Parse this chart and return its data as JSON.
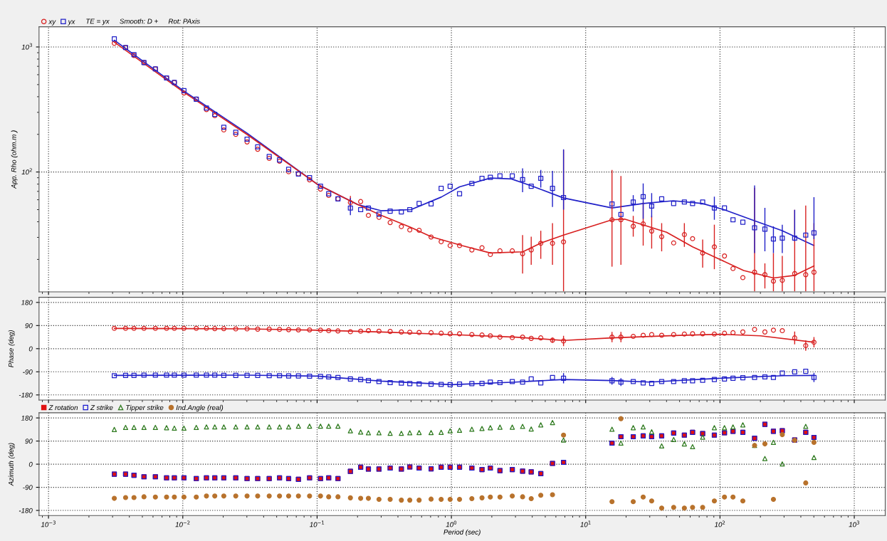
{
  "chart_data": [
    {
      "type": "scatter",
      "ylabel": "App. Rho (ohm.m )",
      "log": "xy",
      "grid": true,
      "legend": "top left",
      "tick_labels": "y",
      "annotations": [
        "TE = yx",
        "Smooth: D +",
        "Rot: PAxis"
      ],
      "xlim": [
        0.00085,
        1700
      ],
      "xticks": [
        {
          "value": 0.001,
          "label": null
        },
        {
          "value": 0.01,
          "label": null
        },
        {
          "value": 0.1,
          "label": null
        },
        {
          "value": 1,
          "label": null
        },
        {
          "value": 10,
          "label": null
        },
        {
          "value": 100,
          "label": null
        },
        {
          "value": 1000,
          "label": null
        }
      ],
      "ylim": [
        11,
        1450
      ],
      "yticks": [
        {
          "value": 100,
          "label": "10$^{2}$"
        },
        {
          "value": 1000,
          "label": "10$^{3}$"
        }
      ],
      "x": [
        0.00309,
        0.00375,
        0.00433,
        0.00514,
        0.00625,
        0.00757,
        0.00865,
        0.0102,
        0.0126,
        0.015,
        0.0173,
        0.0202,
        0.0248,
        0.0301,
        0.0361,
        0.044,
        0.0525,
        0.0614,
        0.0726,
        0.0879,
        0.106,
        0.122,
        0.143,
        0.177,
        0.211,
        0.241,
        0.289,
        0.35,
        0.424,
        0.49,
        0.575,
        0.706,
        0.839,
        0.979,
        1.15,
        1.42,
        1.69,
        1.95,
        2.3,
        2.84,
        3.39,
        3.93,
        4.63,
        5.66,
        6.84,
        15.7,
        18.3,
        22.6,
        26.8,
        31.0,
        36.8,
        45.2,
        54.3,
        62.5,
        74.3,
        90.8,
        108,
        125,
        148,
        181,
        216,
        250,
        291,
        360,
        435,
        501
      ],
      "series": [
        {
          "type": "line",
          "color": "#2020c8",
          "x": [
            0.0031,
            0.01,
            0.03,
            0.1,
            0.2,
            0.3,
            0.5,
            0.84,
            1.15,
            1.95,
            2.8,
            4.0,
            6.84,
            15.7,
            26.8,
            45,
            74,
            108,
            180,
            290,
            501
          ],
          "values": [
            1130,
            450,
            205,
            80,
            55,
            49,
            50,
            63,
            76,
            89.5,
            88,
            77,
            62,
            51.6,
            56,
            58.9,
            56,
            49.8,
            40.8,
            34,
            25.8
          ]
        },
        {
          "type": "line",
          "color": "#d82020",
          "x": [
            0.0031,
            0.01,
            0.03,
            0.1,
            0.2,
            0.3,
            0.5,
            0.706,
            1.2,
            1.95,
            3.4,
            4.63,
            6.84,
            15.7,
            19.5,
            40,
            62.5,
            98,
            150,
            250,
            360,
            501
          ],
          "values": [
            1090,
            440,
            200,
            80,
            55,
            45,
            36,
            30.4,
            25.8,
            22.5,
            23,
            27,
            31.3,
            41.5,
            42,
            33,
            25.2,
            20.2,
            16.3,
            14.2,
            14.9,
            17.7
          ]
        },
        {
          "name": "xy",
          "color": "#d82020",
          "marker": "circle",
          "values": [
            1070,
            990,
            855,
            750,
            668,
            565,
            520,
            428,
            382,
            316,
            282,
            217,
            200,
            174,
            152,
            128.5,
            122,
            100.5,
            96.5,
            86.5,
            73,
            65,
            61,
            57,
            58,
            45,
            43.4,
            39.4,
            36.6,
            34.4,
            34.2,
            30.2,
            27.7,
            25.8,
            25.8,
            23.8,
            24.8,
            21.9,
            23.4,
            23.4,
            22.2,
            23.8,
            26.9,
            26.9,
            27.6,
            41.5,
            41.5,
            36.8,
            38.5,
            33.7,
            30.4,
            27.1,
            31.6,
            29.3,
            22.5,
            25.2,
            21.3,
            16.9,
            14.3,
            15.8,
            15.1,
            13.4,
            13.6,
            15.4,
            15.1,
            15.8
          ],
          "errors": [
            null,
            null,
            null,
            null,
            null,
            null,
            null,
            null,
            null,
            null,
            null,
            null,
            null,
            null,
            null,
            null,
            null,
            null,
            null,
            null,
            null,
            null,
            null,
            [
              50,
              64.4
            ],
            null,
            null,
            null,
            null,
            null,
            null,
            null,
            null,
            null,
            null,
            null,
            null,
            null,
            null,
            null,
            null,
            [
              15.4,
              31.3
            ],
            [
              18.1,
              30.4
            ],
            [
              20.2,
              33.9
            ],
            [
              18.1,
              39
            ],
            [
              11.1,
              150
            ],
            [
              17.5,
              104
            ],
            [
              18.1,
              93
            ],
            [
              30.4,
              44.6
            ],
            [
              25.8,
              57
            ],
            [
              24.4,
              44.6
            ],
            [
              23.2,
              39
            ],
            null,
            [
              25.2,
              39
            ],
            null,
            [
              17.2,
              28.8
            ],
            [
              16.7,
              37.9
            ],
            null,
            null,
            null,
            [
              11.1,
              74.8
            ],
            [
              11.7,
              18.6
            ],
            [
              11.1,
              22.5
            ],
            [
              11.1,
              21.3
            ],
            [
              11.1,
              49.8
            ],
            [
              11.1,
              54
            ],
            [
              11.1,
              39
            ]
          ]
        },
        {
          "name": "yx",
          "color": "#2020c8",
          "marker": "square",
          "values": [
            1160,
            990,
            868,
            750,
            668,
            565,
            520,
            447,
            382,
            325,
            289,
            228,
            208,
            183,
            159,
            133,
            125,
            105,
            96.5,
            90,
            77,
            67,
            61,
            51.5,
            50,
            51.5,
            46,
            48.6,
            48,
            50,
            56,
            55.6,
            74,
            77,
            67,
            81,
            89,
            90.6,
            93,
            93,
            87,
            77,
            89,
            74,
            62.5,
            55.5,
            45.8,
            57.6,
            63.5,
            53.4,
            61,
            56,
            57.6,
            56,
            57.6,
            51.6,
            51.6,
            41.5,
            39.7,
            35.8,
            34.9,
            29.1,
            29.6,
            29.6,
            31.3,
            32.6
          ],
          "errors": [
            null,
            null,
            null,
            null,
            null,
            null,
            null,
            null,
            null,
            null,
            null,
            null,
            null,
            null,
            null,
            null,
            null,
            null,
            null,
            null,
            null,
            null,
            null,
            [
              45.2,
              61.8
            ],
            null,
            null,
            null,
            null,
            null,
            null,
            null,
            null,
            null,
            null,
            null,
            null,
            null,
            null,
            null,
            null,
            [
              69,
              107
            ],
            null,
            [
              75,
              104
            ],
            [
              52.5,
              102
            ],
            [
              50,
              152
            ],
            null,
            null,
            [
              48.4,
              65.3
            ],
            [
              42.2,
              81
            ],
            [
              43.4,
              67.8
            ],
            null,
            null,
            null,
            null,
            null,
            [
              41.5,
              63.5
            ],
            null,
            null,
            null,
            [
              22.5,
              78
            ],
            [
              23.2,
              51.6
            ],
            [
              22.5,
              36.8
            ],
            [
              22.5,
              37.9
            ],
            [
              28,
              49.8
            ],
            null,
            [
              29,
              62.8
            ]
          ]
        }
      ]
    },
    {
      "type": "scatter",
      "ylabel": "Phase (deg)",
      "log": "x",
      "grid": true,
      "tick_labels": "y",
      "xlim": [
        0.00085,
        1700
      ],
      "xticks": [
        {
          "value": 0.001,
          "label": null
        },
        {
          "value": 0.01,
          "label": null
        },
        {
          "value": 0.1,
          "label": null
        },
        {
          "value": 1,
          "label": null
        },
        {
          "value": 10,
          "label": null
        },
        {
          "value": 100,
          "label": null
        },
        {
          "value": 1000,
          "label": null
        }
      ],
      "ylim": [
        -200,
        200
      ],
      "yticks": [
        {
          "value": -180,
          "label": "-180"
        },
        {
          "value": -90,
          "label": "-90"
        },
        0,
        90,
        180
      ],
      "x": [
        0.00309,
        0.00375,
        0.00433,
        0.00514,
        0.00625,
        0.00757,
        0.00865,
        0.0102,
        0.0126,
        0.015,
        0.0173,
        0.0202,
        0.0248,
        0.0301,
        0.0361,
        0.044,
        0.0525,
        0.0614,
        0.0726,
        0.0879,
        0.106,
        0.122,
        0.143,
        0.177,
        0.211,
        0.241,
        0.289,
        0.35,
        0.424,
        0.49,
        0.575,
        0.706,
        0.839,
        0.979,
        1.15,
        1.42,
        1.69,
        1.95,
        2.3,
        2.84,
        3.39,
        3.93,
        4.63,
        5.66,
        6.84,
        15.7,
        18.3,
        22.6,
        26.8,
        31.0,
        36.8,
        45.2,
        54.3,
        62.5,
        74.3,
        90.8,
        108,
        125,
        148,
        181,
        216,
        250,
        291,
        360,
        435,
        501
      ],
      "series": [
        {
          "type": "line",
          "color": "#d82020",
          "x": [
            0.0031,
            0.03,
            0.1,
            0.3,
            1,
            3,
            6.84,
            15.7,
            50,
            100,
            200,
            501
          ],
          "values": [
            79,
            77,
            72,
            65,
            55,
            45,
            32,
            42,
            52,
            56,
            50,
            25
          ]
        },
        {
          "type": "line",
          "color": "#2020c8",
          "x": [
            0.0031,
            0.03,
            0.1,
            0.3,
            1,
            3,
            6.84,
            15.7,
            30,
            100,
            300,
            501
          ],
          "values": [
            -104,
            -103,
            -107,
            -126,
            -140,
            -130,
            -120,
            -124,
            -130,
            -115,
            -105,
            -104
          ]
        },
        {
          "color": "#d82020",
          "marker": "circle",
          "values": [
            79,
            79,
            79,
            79,
            79,
            79,
            79,
            79,
            79,
            79,
            78,
            78,
            77,
            77,
            76,
            76,
            75,
            74,
            73,
            73,
            72,
            70,
            69,
            66,
            68,
            70,
            68,
            67,
            65,
            64,
            63,
            62,
            60,
            58,
            58,
            55,
            53,
            50,
            45,
            43,
            45,
            40,
            42,
            33,
            30,
            45,
            45,
            48,
            52,
            55,
            52,
            55,
            57,
            58,
            58,
            57,
            60,
            62,
            65,
            75,
            65,
            72,
            70,
            42,
            12,
            25
          ],
          "errors": [
            null,
            null,
            null,
            null,
            null,
            null,
            null,
            null,
            null,
            null,
            null,
            null,
            null,
            null,
            null,
            null,
            null,
            null,
            null,
            null,
            null,
            null,
            null,
            null,
            null,
            null,
            null,
            null,
            null,
            null,
            null,
            null,
            null,
            null,
            null,
            null,
            null,
            null,
            null,
            null,
            null,
            null,
            null,
            10,
            20,
            20,
            20,
            null,
            null,
            null,
            null,
            null,
            null,
            null,
            null,
            null,
            null,
            null,
            null,
            null,
            null,
            null,
            null,
            25,
            20,
            20
          ]
        },
        {
          "color": "#2020c8",
          "marker": "square",
          "values": [
            -105,
            -104,
            -104,
            -103,
            -103,
            -103,
            -103,
            -103,
            -103,
            -103,
            -103,
            -104,
            -104,
            -104,
            -104,
            -105,
            -105,
            -106,
            -106,
            -107,
            -108,
            -110,
            -112,
            -118,
            -120,
            -124,
            -128,
            -132,
            -134,
            -136,
            -137,
            -138,
            -139,
            -140,
            -138,
            -136,
            -135,
            -130,
            -132,
            -128,
            -130,
            -118,
            -133,
            -112,
            -115,
            -125,
            -130,
            -128,
            -133,
            -135,
            -128,
            -128,
            -125,
            -125,
            -123,
            -120,
            -118,
            -115,
            -113,
            -112,
            -110,
            -112,
            -95,
            -90,
            -88,
            -112
          ],
          "errors": [
            null,
            null,
            null,
            null,
            null,
            null,
            null,
            null,
            null,
            null,
            null,
            null,
            null,
            null,
            null,
            null,
            null,
            null,
            null,
            null,
            null,
            null,
            null,
            null,
            null,
            null,
            null,
            null,
            null,
            null,
            null,
            null,
            null,
            null,
            null,
            null,
            null,
            null,
            null,
            null,
            null,
            null,
            null,
            null,
            20,
            15,
            15,
            null,
            null,
            null,
            null,
            null,
            null,
            null,
            null,
            null,
            null,
            null,
            null,
            null,
            null,
            null,
            null,
            null,
            null,
            18
          ]
        }
      ]
    },
    {
      "type": "scatter",
      "ylabel": "Azimuth (deg)",
      "xlabel": "Period (sec)",
      "log": "x",
      "grid": true,
      "legend": "top left",
      "xlim": [
        0.00085,
        1700
      ],
      "xticks": [
        {
          "value": 0.001,
          "label": "10$^{−3}$"
        },
        {
          "value": 0.01,
          "label": "10$^{−2}$"
        },
        {
          "value": 0.1,
          "label": "10$^{−1}$"
        },
        {
          "value": 1,
          "label": "10$^{0}$"
        },
        {
          "value": 10,
          "label": "10$^{1}$"
        },
        {
          "value": 100,
          "label": "10$^{2}$"
        },
        {
          "value": 1000,
          "label": "10$^{3}$"
        }
      ],
      "ylim": [
        -200,
        200
      ],
      "yticks": [
        {
          "value": -180,
          "label": "-180"
        },
        {
          "value": -90,
          "label": "-90"
        },
        0,
        90,
        180
      ],
      "x": [
        0.00309,
        0.00375,
        0.00433,
        0.00514,
        0.00625,
        0.00757,
        0.00865,
        0.0102,
        0.0126,
        0.015,
        0.0173,
        0.0202,
        0.0248,
        0.0301,
        0.0361,
        0.044,
        0.0525,
        0.0614,
        0.0726,
        0.0879,
        0.106,
        0.122,
        0.143,
        0.177,
        0.211,
        0.241,
        0.289,
        0.35,
        0.424,
        0.49,
        0.575,
        0.706,
        0.839,
        0.979,
        1.15,
        1.42,
        1.69,
        1.95,
        2.3,
        2.84,
        3.39,
        3.93,
        4.63,
        5.66,
        6.84,
        15.7,
        18.3,
        22.6,
        26.8,
        31.0,
        36.8,
        45.2,
        54.3,
        62.5,
        74.3,
        90.8,
        108,
        125,
        148,
        181,
        216,
        250,
        291,
        360,
        435,
        501
      ],
      "series": [
        {
          "name": "Z rotation",
          "color": "#e01010",
          "marker": "square",
          "values": [
            -39,
            -39,
            -43,
            -49,
            -49,
            -53,
            -53,
            -53,
            -56,
            -53,
            -53,
            -53,
            -53,
            -56,
            -56,
            -56,
            -53,
            -56,
            -59,
            -53,
            -56,
            -53,
            -56,
            -28,
            -12,
            -19,
            -19,
            -15,
            -19,
            -11,
            -15,
            -18,
            -12,
            -12,
            -12,
            -15,
            -21,
            -15,
            -25,
            -21,
            -27,
            -30,
            -37,
            3,
            7,
            82,
            107,
            107,
            110,
            107,
            110,
            121,
            113,
            124,
            119,
            113,
            122,
            128,
            124,
            101,
            155,
            128,
            130,
            94,
            124,
            104
          ]
        },
        {
          "name": "Z strike",
          "color": "#1a1ad0",
          "marker": "square",
          "values": [
            -39,
            -39,
            -43,
            -49,
            -49,
            -53,
            -53,
            -53,
            -56,
            -53,
            -53,
            -53,
            -53,
            -56,
            -56,
            -56,
            -53,
            -56,
            -59,
            -53,
            -56,
            -53,
            -56,
            -28,
            -12,
            -19,
            -19,
            -15,
            -19,
            -11,
            -15,
            -18,
            -12,
            -12,
            -12,
            -15,
            -21,
            -15,
            -25,
            -21,
            -27,
            -30,
            -37,
            3,
            7,
            82,
            107,
            107,
            110,
            107,
            110,
            121,
            113,
            124,
            119,
            113,
            122,
            128,
            124,
            101,
            155,
            128,
            130,
            94,
            124,
            104
          ]
        },
        {
          "name": "Tipper strike",
          "color": "#2e7a1e",
          "marker": "triangle",
          "values": [
            135,
            143,
            143,
            143,
            143,
            142,
            140,
            140,
            143,
            145,
            145,
            145,
            145,
            145,
            145,
            145,
            145,
            145,
            148,
            148,
            148,
            148,
            148,
            130,
            125,
            122,
            122,
            120,
            120,
            122,
            123,
            123,
            124,
            130,
            132,
            136,
            139,
            142,
            144,
            144,
            147,
            137,
            153,
            162,
            94,
            136,
            82,
            142,
            145,
            126,
            71,
            96,
            79,
            68,
            105,
            142,
            142,
            145,
            153,
            73,
            22,
            85,
            1,
            null,
            147,
            26
          ]
        },
        {
          "name": "Ind.Angle (real)",
          "color": "#b8722c",
          "marker": "circle",
          "values": [
            -133,
            -130,
            -130,
            -127,
            -128,
            -128,
            -128,
            -128,
            -128,
            -124,
            -124,
            -124,
            -124,
            -124,
            -124,
            -124,
            -124,
            -124,
            -124,
            -124,
            -124,
            -127,
            -127,
            -131,
            -133,
            -133,
            -137,
            -137,
            -140,
            -140,
            -140,
            -136,
            -137,
            -137,
            -137,
            -134,
            -131,
            -128,
            -128,
            -124,
            -127,
            -134,
            -121,
            -119,
            113,
            -146,
            177,
            -146,
            -128,
            -143,
            -171,
            -168,
            -171,
            -168,
            -168,
            -143,
            -128,
            -128,
            -143,
            73,
            79,
            -137,
            115,
            93,
            -73,
            85
          ]
        }
      ]
    }
  ]
}
